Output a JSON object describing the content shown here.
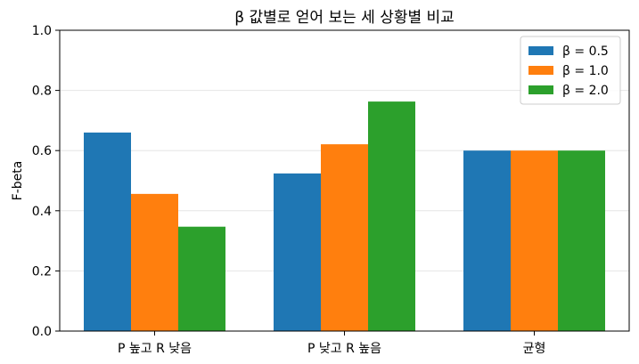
{
  "chart_data": {
    "type": "bar",
    "title": "β 값별로 얻어 보는 세 상황별 비교",
    "xlabel": "",
    "ylabel": "F-beta",
    "ylim": [
      0,
      1.0
    ],
    "yticks": [
      "0.0",
      "0.2",
      "0.4",
      "0.6",
      "0.8",
      "1.0"
    ],
    "grid": "y",
    "legend_position": "top-right",
    "categories": [
      "P 높고 R 낮음",
      "P 낮고 R 높음",
      "균형"
    ],
    "series": [
      {
        "name": "β = 0.5",
        "color": "#1f77b4",
        "values": [
          0.66,
          0.524,
          0.6
        ]
      },
      {
        "name": "β = 1.0",
        "color": "#ff7f0e",
        "values": [
          0.456,
          0.621,
          0.6
        ]
      },
      {
        "name": "β = 2.0",
        "color": "#2ca02c",
        "values": [
          0.347,
          0.763,
          0.6
        ]
      }
    ]
  }
}
